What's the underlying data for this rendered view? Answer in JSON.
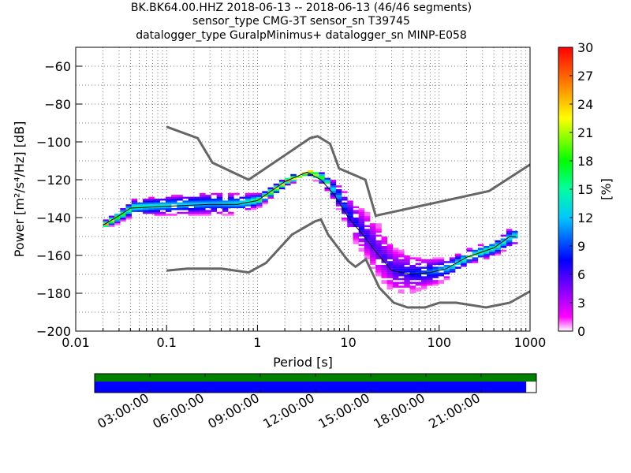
{
  "title_lines": [
    "BK.BK64.00.HHZ   2018-06-13 -- 2018-06-13  (46/46 segments)",
    "sensor_type CMG-3T sensor_sn T39745",
    "datalogger_type GuralpMinimus+ datalogger_sn MINP-E058"
  ],
  "chart_data": {
    "type": "heatmap",
    "xlabel": "Period [s]",
    "ylabel": "Power [m²/s⁴/Hz] [dB]",
    "xscale": "log",
    "xlim": [
      0.01,
      1000
    ],
    "ylim": [
      -200,
      -50
    ],
    "xticks": [
      {
        "v": 0.01,
        "label": "0.01"
      },
      {
        "v": 0.1,
        "label": "0.1"
      },
      {
        "v": 1,
        "label": "1"
      },
      {
        "v": 10,
        "label": "10"
      },
      {
        "v": 100,
        "label": "100"
      },
      {
        "v": 1000,
        "label": "1000"
      }
    ],
    "yticks": [
      {
        "v": -200,
        "label": "−200"
      },
      {
        "v": -180,
        "label": "−180"
      },
      {
        "v": -160,
        "label": "−160"
      },
      {
        "v": -140,
        "label": "−140"
      },
      {
        "v": -120,
        "label": "−120"
      },
      {
        "v": -100,
        "label": "−100"
      },
      {
        "v": -80,
        "label": "−80"
      },
      {
        "v": -60,
        "label": "−60"
      }
    ],
    "colorbar": {
      "label": "[%]",
      "range": [
        0,
        30
      ],
      "ticks": [
        "0",
        "3",
        "6",
        "9",
        "12",
        "15",
        "18",
        "21",
        "24",
        "27",
        "30"
      ]
    },
    "mean_curve": {
      "period": [
        0.02,
        0.03,
        0.04,
        0.1,
        0.3,
        0.6,
        1,
        2,
        3.5,
        5,
        7,
        10,
        15,
        20,
        30,
        50,
        80,
        120,
        200,
        400,
        600,
        700
      ],
      "db": [
        -144,
        -139,
        -135,
        -134,
        -133,
        -133,
        -131,
        -121,
        -116,
        -120,
        -128,
        -140,
        -150,
        -158,
        -168,
        -170,
        -169,
        -167,
        -161,
        -156,
        -150,
        -150
      ],
      "spread_db": [
        2,
        3,
        4,
        5,
        6,
        5,
        3,
        2,
        2,
        3,
        6,
        10,
        12,
        14,
        12,
        9,
        7,
        5,
        4,
        4,
        5,
        5
      ]
    },
    "nhnm": {
      "period": [
        0.1,
        0.22,
        0.32,
        0.8,
        3.8,
        4.6,
        6.3,
        7.9,
        15.4,
        20,
        354,
        1000
      ],
      "db": [
        -92,
        -98,
        -111,
        -120,
        -98,
        -97,
        -101,
        -114,
        -120,
        -139,
        -126,
        -112
      ]
    },
    "nlnm": {
      "period": [
        0.1,
        0.17,
        0.4,
        0.8,
        1.24,
        2.4,
        4.3,
        5,
        6,
        10,
        12,
        15.6,
        21.9,
        31.6,
        45,
        70,
        101,
        154,
        328,
        600,
        1000
      ],
      "db": [
        -168,
        -167,
        -167,
        -169,
        -164,
        -149,
        -142,
        -141,
        -149,
        -163,
        -166,
        -162,
        -177,
        -185,
        -187.5,
        -187.5,
        -185,
        -185,
        -187.5,
        -185,
        -179
      ]
    }
  },
  "timeline": {
    "ticks": [
      "03:00:00",
      "06:00:00",
      "09:00:00",
      "12:00:00",
      "15:00:00",
      "18:00:00",
      "21:00:00"
    ],
    "coverage_fraction": 0.977,
    "colors": {
      "data": "#008000",
      "processed": "#0000ff"
    }
  }
}
